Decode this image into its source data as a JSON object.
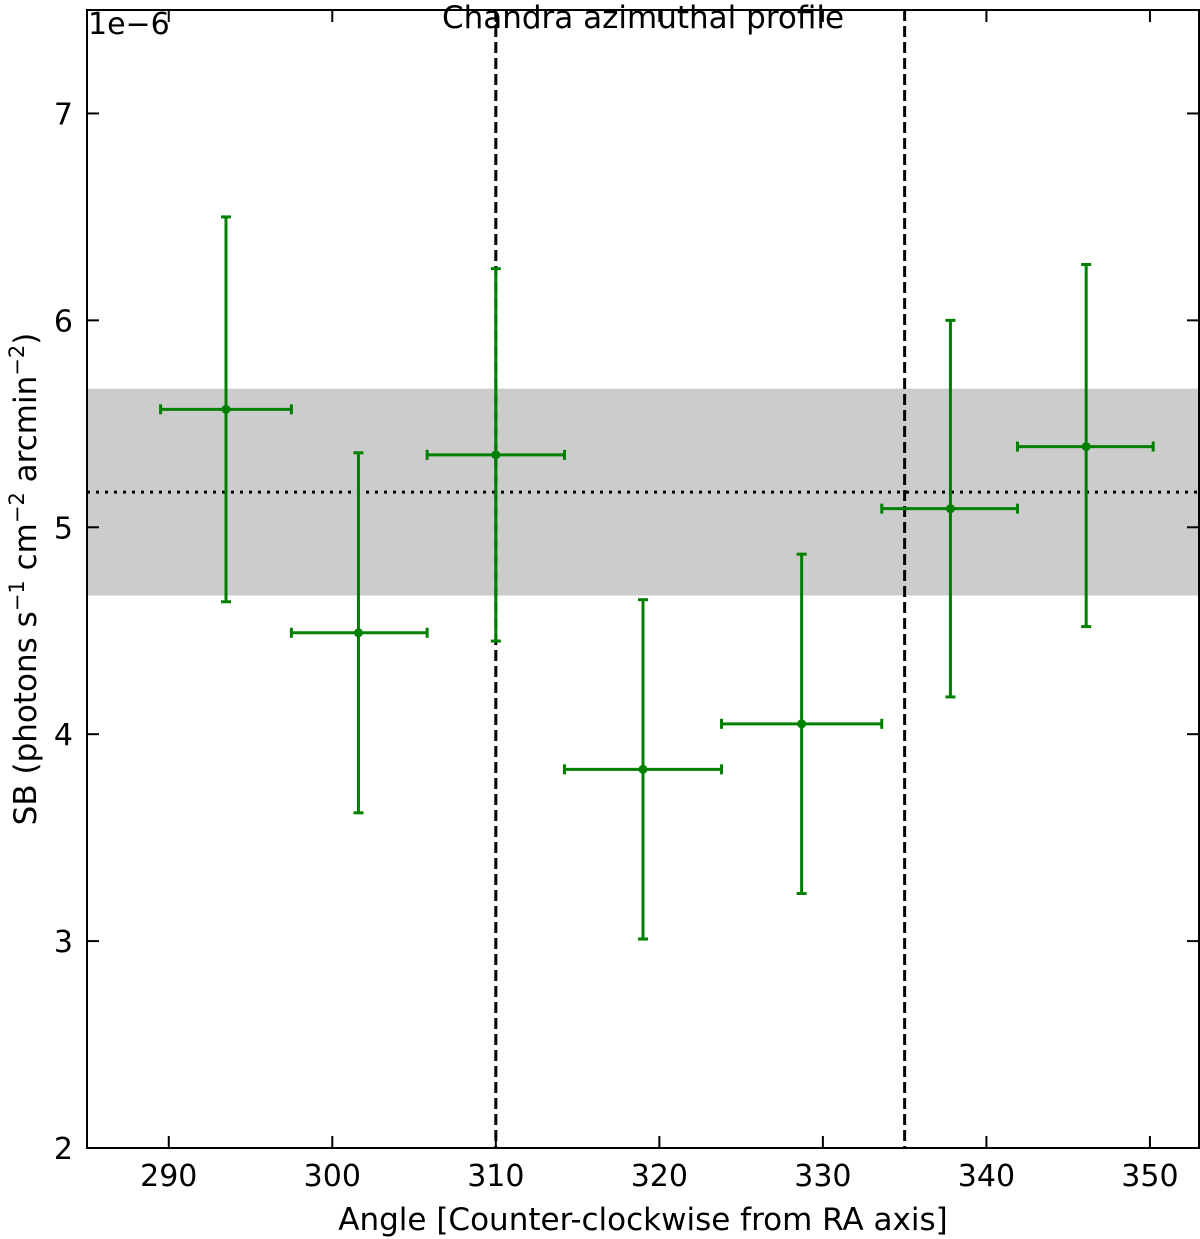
{
  "chart_data": {
    "type": "scatter",
    "title": "Chandra azimuthal profile",
    "xlabel": "Angle [Counter-clockwise from RA axis]",
    "ylabel_parts": [
      "SB (photons s",
      "−1",
      " cm",
      "−2",
      " arcmin",
      "−2",
      ")"
    ],
    "offset_text": "1e−6",
    "xlim": [
      285,
      353
    ],
    "ylim": [
      2,
      7.5
    ],
    "xticks": [
      290,
      300,
      310,
      320,
      330,
      340,
      350
    ],
    "yticks": [
      2,
      3,
      4,
      5,
      6,
      7
    ],
    "grid": false,
    "series": [
      {
        "color": "#008000",
        "points": [
          {
            "x": 293.5,
            "x_lo": 289.5,
            "x_hi": 297.5,
            "y": 5.57,
            "y_lo": 4.64,
            "y_hi": 6.5
          },
          {
            "x": 301.6,
            "x_lo": 297.5,
            "x_hi": 305.8,
            "y": 4.49,
            "y_lo": 3.62,
            "y_hi": 5.36
          },
          {
            "x": 310.0,
            "x_lo": 305.8,
            "x_hi": 314.2,
            "y": 5.35,
            "y_lo": 4.45,
            "y_hi": 6.25
          },
          {
            "x": 319.0,
            "x_lo": 314.2,
            "x_hi": 323.8,
            "y": 3.83,
            "y_lo": 3.01,
            "y_hi": 4.65
          },
          {
            "x": 328.7,
            "x_lo": 323.8,
            "x_hi": 333.6,
            "y": 4.05,
            "y_lo": 3.23,
            "y_hi": 4.87
          },
          {
            "x": 337.8,
            "x_lo": 333.6,
            "x_hi": 341.9,
            "y": 5.09,
            "y_lo": 4.18,
            "y_hi": 6.0
          },
          {
            "x": 346.1,
            "x_lo": 341.9,
            "x_hi": 350.2,
            "y": 5.39,
            "y_lo": 4.52,
            "y_hi": 6.27
          }
        ]
      }
    ],
    "vlines": [
      310,
      335
    ],
    "mean_line": 5.17,
    "band": [
      4.67,
      5.67
    ],
    "band_color": "#cccccc"
  }
}
